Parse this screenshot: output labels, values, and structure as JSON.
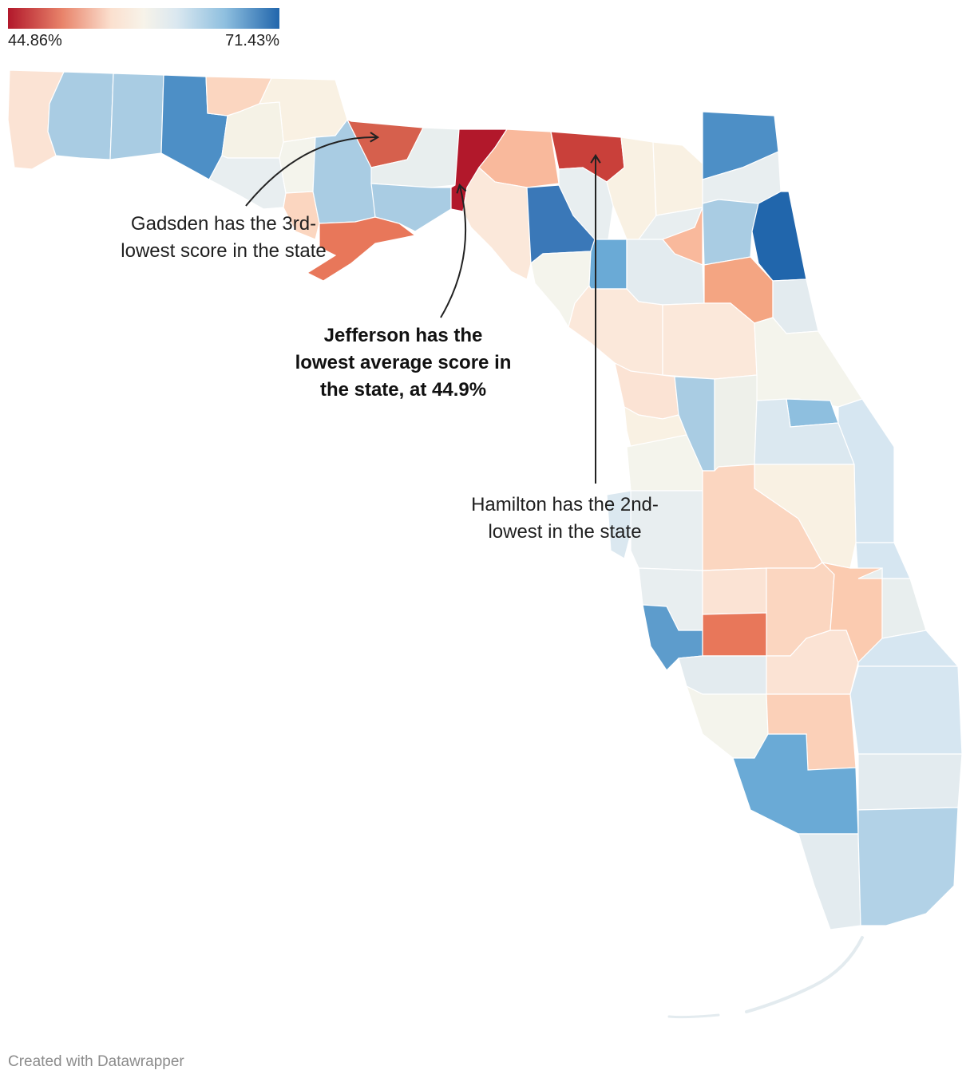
{
  "legend": {
    "min_label": "44.86%",
    "max_label": "71.43%",
    "min_value": 44.86,
    "max_value": 71.43,
    "low_color": "#b2182b",
    "mid_color": "#f7f3e9",
    "high_color": "#2166ac"
  },
  "counties": [
    {
      "name": "Escambia",
      "color": "#fbe3d4"
    },
    {
      "name": "Santa Rosa",
      "color": "#a9cce3"
    },
    {
      "name": "Okaloosa",
      "color": "#a9cce3"
    },
    {
      "name": "Walton",
      "color": "#4d8fc6"
    },
    {
      "name": "Holmes",
      "color": "#fbd6c0"
    },
    {
      "name": "Washington",
      "color": "#f5f2e6"
    },
    {
      "name": "Jackson",
      "color": "#f9f1e3"
    },
    {
      "name": "Bay",
      "color": "#e8eef0"
    },
    {
      "name": "Calhoun",
      "color": "#f4f4ec"
    },
    {
      "name": "Gulf",
      "color": "#fbd6c0"
    },
    {
      "name": "Liberty",
      "color": "#a9cce3"
    },
    {
      "name": "Franklin",
      "color": "#e8775a"
    },
    {
      "name": "Gadsden",
      "color": "#d6604d"
    },
    {
      "name": "Leon",
      "color": "#e8eeee"
    },
    {
      "name": "Wakulla",
      "color": "#a9cce3"
    },
    {
      "name": "Jefferson",
      "color": "#b2182b"
    },
    {
      "name": "Madison",
      "color": "#f9b99c"
    },
    {
      "name": "Taylor",
      "color": "#fbe8da"
    },
    {
      "name": "Hamilton",
      "color": "#c9403a"
    },
    {
      "name": "Suwannee",
      "color": "#e8eef0"
    },
    {
      "name": "Lafayette",
      "color": "#3a78b8"
    },
    {
      "name": "Dixie",
      "color": "#f4f4ec"
    },
    {
      "name": "Columbia",
      "color": "#f9f1e3"
    },
    {
      "name": "Gilchrist",
      "color": "#6aaad6"
    },
    {
      "name": "Baker",
      "color": "#f9f1e3"
    },
    {
      "name": "Union",
      "color": "#e8eef0"
    },
    {
      "name": "Bradford",
      "color": "#f9b99c"
    },
    {
      "name": "Nassau",
      "color": "#4d8fc6"
    },
    {
      "name": "Duval",
      "color": "#e8eef0"
    },
    {
      "name": "Clay",
      "color": "#a9cce3"
    },
    {
      "name": "St. Johns",
      "color": "#2166ac"
    },
    {
      "name": "Alachua",
      "color": "#e3ebef"
    },
    {
      "name": "Putnam",
      "color": "#f4a582"
    },
    {
      "name": "Flagler",
      "color": "#e3ebef"
    },
    {
      "name": "Levy",
      "color": "#fbe8da"
    },
    {
      "name": "Marion",
      "color": "#fbe8da"
    },
    {
      "name": "Volusia",
      "color": "#f4f4ec"
    },
    {
      "name": "Citrus",
      "color": "#fbe3d4"
    },
    {
      "name": "Sumter",
      "color": "#a9cce3"
    },
    {
      "name": "Lake",
      "color": "#eef0ea"
    },
    {
      "name": "Seminole",
      "color": "#8ebfdf"
    },
    {
      "name": "Hernando",
      "color": "#f9f1e3"
    },
    {
      "name": "Pasco",
      "color": "#f4f4ec"
    },
    {
      "name": "Orange",
      "color": "#dbe8f0"
    },
    {
      "name": "Brevard",
      "color": "#d6e6f1"
    },
    {
      "name": "Pinellas",
      "color": "#dbe8f0"
    },
    {
      "name": "Hillsborough",
      "color": "#e8eef0"
    },
    {
      "name": "Polk",
      "color": "#fbd6c0"
    },
    {
      "name": "Osceola",
      "color": "#f9f1e3"
    },
    {
      "name": "Indian River",
      "color": "#d6e6f1"
    },
    {
      "name": "Manatee",
      "color": "#e8eef0"
    },
    {
      "name": "Hardee",
      "color": "#fbe3d4"
    },
    {
      "name": "Highlands",
      "color": "#fbd6c0"
    },
    {
      "name": "Okeechobee",
      "color": "#fbcbb0"
    },
    {
      "name": "St. Lucie",
      "color": "#e8eeee"
    },
    {
      "name": "Sarasota",
      "color": "#5d9ccc"
    },
    {
      "name": "DeSoto",
      "color": "#e8775a"
    },
    {
      "name": "Martin",
      "color": "#d6e6f1"
    },
    {
      "name": "Charlotte",
      "color": "#e3ebef"
    },
    {
      "name": "Glades",
      "color": "#fbe3d4"
    },
    {
      "name": "Lee",
      "color": "#f4f4ec"
    },
    {
      "name": "Hendry",
      "color": "#fbd0b8"
    },
    {
      "name": "Palm Beach",
      "color": "#d6e6f1"
    },
    {
      "name": "Collier",
      "color": "#6aaad6"
    },
    {
      "name": "Broward",
      "color": "#e3ebef"
    },
    {
      "name": "Monroe",
      "color": "#e3ebef"
    },
    {
      "name": "Miami-Dade",
      "color": "#b2d2e7"
    }
  ],
  "annotations": [
    {
      "id": "gadsden",
      "text": "Gadsden has the 3rd-lowest score in the state",
      "line1": "Gadsden has the 3rd-",
      "line2": "lowest score in the state"
    },
    {
      "id": "jefferson",
      "text": "Jefferson has the lowest average score in the state, at 44.9%",
      "line1": "Jefferson has the",
      "line2": "lowest average score in",
      "line3": "the state, at 44.9%"
    },
    {
      "id": "hamilton",
      "text": "Hamilton has the 2nd-lowest in the state",
      "line1": "Hamilton has the 2nd-",
      "line2": "lowest in the state"
    }
  ],
  "credit": "Created with Datawrapper"
}
